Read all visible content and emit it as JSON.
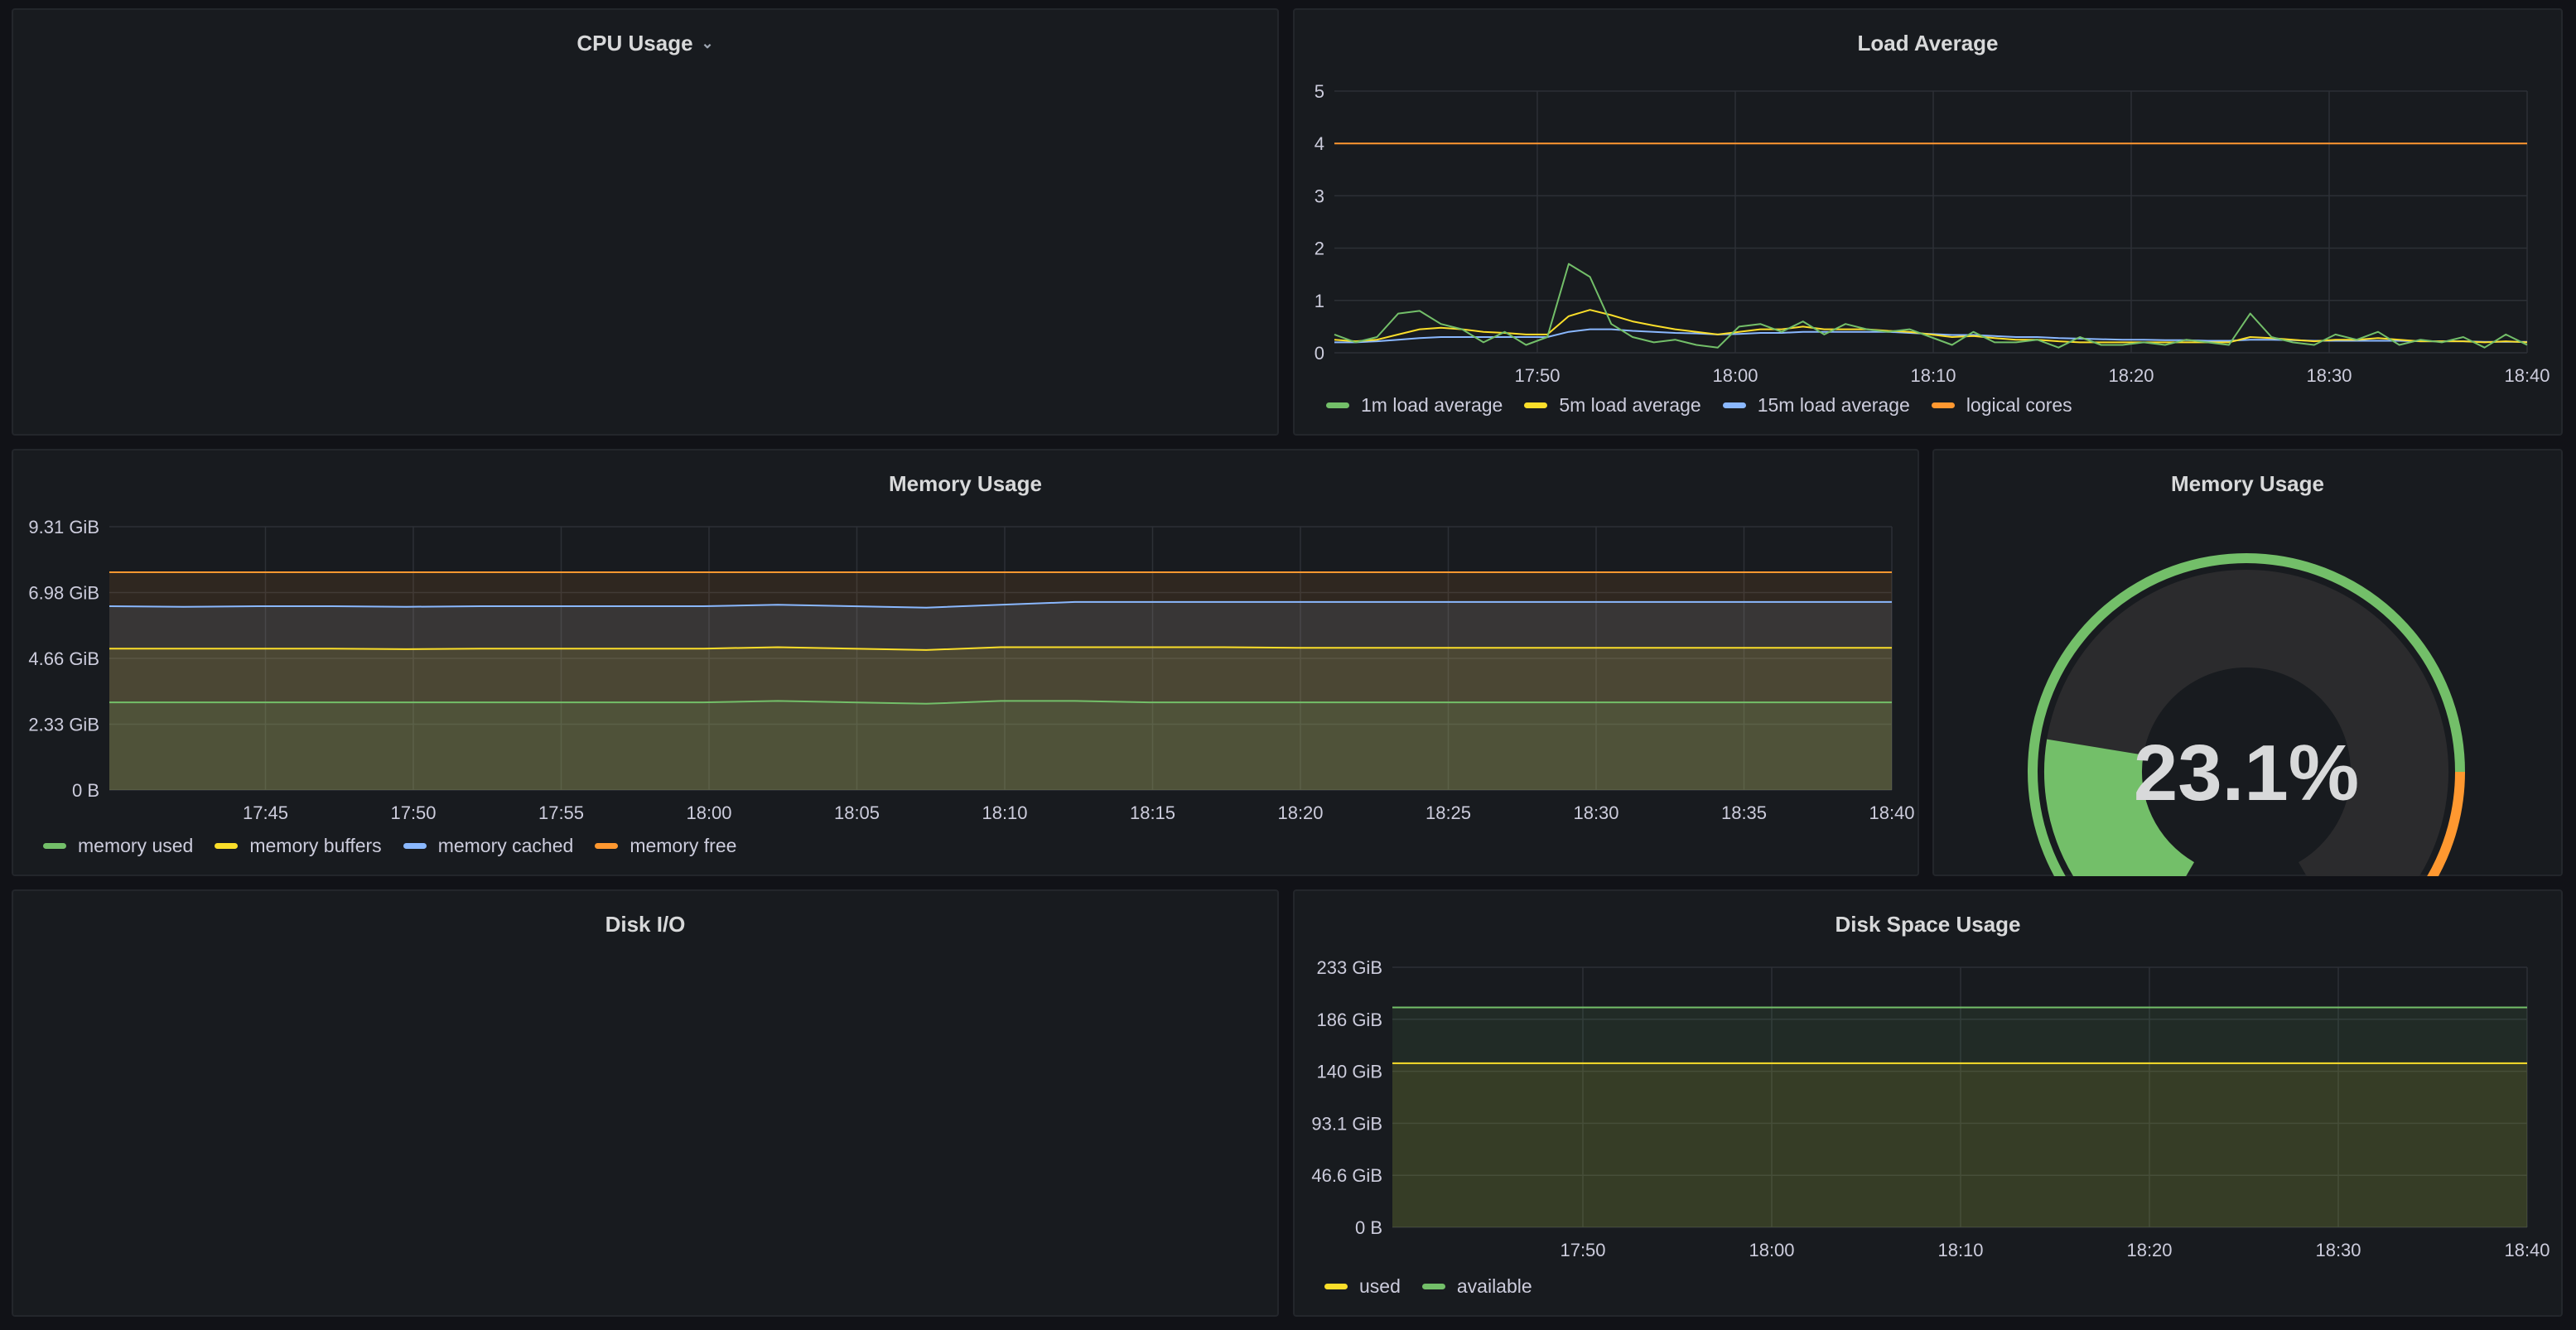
{
  "panels": {
    "cpu": {
      "title": "CPU Usage"
    },
    "load": {
      "title": "Load Average"
    },
    "memory": {
      "title": "Memory Usage"
    },
    "memgauge": {
      "title": "Memory Usage",
      "value": "23.1%"
    },
    "diskio": {
      "title": "Disk I/O"
    },
    "diskspace": {
      "title": "Disk Space Usage"
    }
  },
  "colors": {
    "green": "#73bf69",
    "yellow": "#fade2a",
    "blue": "#8ab8ff",
    "orange": "#ff9830",
    "red": "#f2495c"
  },
  "chart_data": [
    {
      "id": "load",
      "type": "line",
      "title": "Load Average",
      "x_ticks": [
        "17:50",
        "18:00",
        "18:10",
        "18:20",
        "18:30",
        "18:40"
      ],
      "y_ticks": [
        "0",
        "1",
        "2",
        "3",
        "4",
        "5"
      ],
      "ylim": [
        0,
        5
      ],
      "grid": true,
      "legend_position": "bottom",
      "series": [
        {
          "name": "1m load average",
          "color": "#73bf69",
          "values": [
            0.35,
            0.2,
            0.3,
            0.75,
            0.8,
            0.55,
            0.45,
            0.2,
            0.4,
            0.15,
            0.3,
            1.7,
            1.45,
            0.55,
            0.3,
            0.2,
            0.25,
            0.15,
            0.1,
            0.5,
            0.55,
            0.4,
            0.6,
            0.35,
            0.55,
            0.45,
            0.4,
            0.45,
            0.3,
            0.15,
            0.4,
            0.2,
            0.2,
            0.25,
            0.1,
            0.3,
            0.15,
            0.15,
            0.2,
            0.15,
            0.25,
            0.2,
            0.15,
            0.75,
            0.3,
            0.2,
            0.15,
            0.35,
            0.25,
            0.4,
            0.15,
            0.25,
            0.2,
            0.3,
            0.1,
            0.35,
            0.15
          ]
        },
        {
          "name": "5m load average",
          "color": "#fade2a",
          "values": [
            0.25,
            0.22,
            0.25,
            0.35,
            0.45,
            0.48,
            0.45,
            0.4,
            0.38,
            0.35,
            0.35,
            0.7,
            0.82,
            0.72,
            0.6,
            0.52,
            0.45,
            0.4,
            0.35,
            0.4,
            0.45,
            0.45,
            0.5,
            0.45,
            0.45,
            0.45,
            0.42,
            0.4,
            0.35,
            0.3,
            0.32,
            0.28,
            0.25,
            0.25,
            0.22,
            0.2,
            0.2,
            0.2,
            0.2,
            0.2,
            0.2,
            0.2,
            0.2,
            0.3,
            0.28,
            0.25,
            0.22,
            0.25,
            0.25,
            0.28,
            0.25,
            0.22,
            0.22,
            0.22,
            0.2,
            0.22,
            0.2
          ]
        },
        {
          "name": "15m load average",
          "color": "#8ab8ff",
          "values": [
            0.2,
            0.2,
            0.22,
            0.25,
            0.28,
            0.3,
            0.3,
            0.3,
            0.3,
            0.3,
            0.3,
            0.4,
            0.45,
            0.45,
            0.42,
            0.4,
            0.38,
            0.37,
            0.35,
            0.36,
            0.38,
            0.38,
            0.4,
            0.4,
            0.4,
            0.4,
            0.4,
            0.38,
            0.36,
            0.34,
            0.34,
            0.32,
            0.3,
            0.3,
            0.28,
            0.27,
            0.26,
            0.25,
            0.25,
            0.24,
            0.24,
            0.23,
            0.23,
            0.25,
            0.25,
            0.24,
            0.23,
            0.23,
            0.23,
            0.23,
            0.23,
            0.22,
            0.22,
            0.22,
            0.21,
            0.21,
            0.21
          ]
        },
        {
          "name": "logical cores",
          "color": "#ff9830",
          "values": [
            4,
            4
          ]
        }
      ]
    },
    {
      "id": "memory",
      "type": "area",
      "title": "Memory Usage",
      "x_ticks": [
        "17:45",
        "17:50",
        "17:55",
        "18:00",
        "18:05",
        "18:10",
        "18:15",
        "18:20",
        "18:25",
        "18:30",
        "18:35",
        "18:40"
      ],
      "y_ticks": [
        "0 B",
        "2.33 GiB",
        "4.66 GiB",
        "6.98 GiB",
        "9.31 GiB"
      ],
      "ylim": [
        0,
        9.31
      ],
      "y_unit": "GiB",
      "stacked": true,
      "grid": true,
      "legend_position": "bottom",
      "series": [
        {
          "name": "memory used",
          "color": "#73bf69",
          "values": [
            3.1,
            3.1,
            3.1,
            3.1,
            3.1,
            3.1,
            3.1,
            3.1,
            3.1,
            3.15,
            3.1,
            3.05,
            3.15,
            3.15,
            3.1,
            3.1,
            3.1,
            3.1,
            3.1,
            3.1,
            3.1,
            3.1,
            3.1,
            3.1,
            3.1
          ]
        },
        {
          "name": "memory buffers",
          "color": "#fade2a",
          "values": [
            5.0,
            5.0,
            5.0,
            5.0,
            4.98,
            5.0,
            5.0,
            5.0,
            5.0,
            5.05,
            5.0,
            4.95,
            5.05,
            5.05,
            5.05,
            5.05,
            5.03,
            5.03,
            5.03,
            5.03,
            5.03,
            5.03,
            5.03,
            5.03,
            5.03
          ]
        },
        {
          "name": "memory cached",
          "color": "#8ab8ff",
          "values": [
            6.5,
            6.48,
            6.5,
            6.5,
            6.48,
            6.5,
            6.5,
            6.5,
            6.5,
            6.55,
            6.5,
            6.45,
            6.55,
            6.65,
            6.65,
            6.65,
            6.65,
            6.65,
            6.65,
            6.65,
            6.65,
            6.65,
            6.65,
            6.65,
            6.65
          ]
        },
        {
          "name": "memory free",
          "color": "#ff9830",
          "values": [
            7.7,
            7.7
          ]
        }
      ]
    },
    {
      "id": "diskspace",
      "type": "area",
      "title": "Disk Space Usage",
      "x_ticks": [
        "17:50",
        "18:00",
        "18:10",
        "18:20",
        "18:30",
        "18:40"
      ],
      "y_ticks": [
        "0 B",
        "46.6 GiB",
        "93.1 GiB",
        "140 GiB",
        "186 GiB",
        "233 GiB"
      ],
      "ylim": [
        0,
        233
      ],
      "y_unit": "GiB",
      "grid": true,
      "legend_position": "bottom",
      "series": [
        {
          "name": "used",
          "color": "#fade2a",
          "values": [
            147,
            147
          ]
        },
        {
          "name": "available",
          "color": "#73bf69",
          "values": [
            197,
            197
          ]
        }
      ]
    },
    {
      "id": "memgauge",
      "type": "gauge",
      "title": "Memory Usage",
      "value_percent": 23.1,
      "thresholds": [
        {
          "from": 0,
          "color": "#73bf69"
        },
        {
          "from": 80,
          "color": "#ff9830"
        },
        {
          "from": 90,
          "color": "#f2495c"
        }
      ]
    }
  ]
}
